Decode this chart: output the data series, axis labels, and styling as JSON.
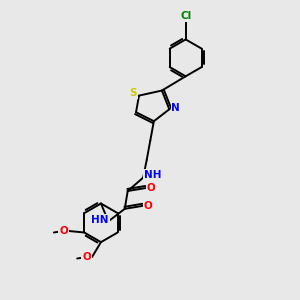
{
  "background_color": "#e8e8e8",
  "bond_color": "black",
  "atom_colors": {
    "C": "black",
    "N": "blue",
    "O": "red",
    "S": "#cccc00",
    "Cl": "green",
    "H": "#555555"
  },
  "figsize": [
    3.0,
    3.0
  ],
  "dpi": 100
}
